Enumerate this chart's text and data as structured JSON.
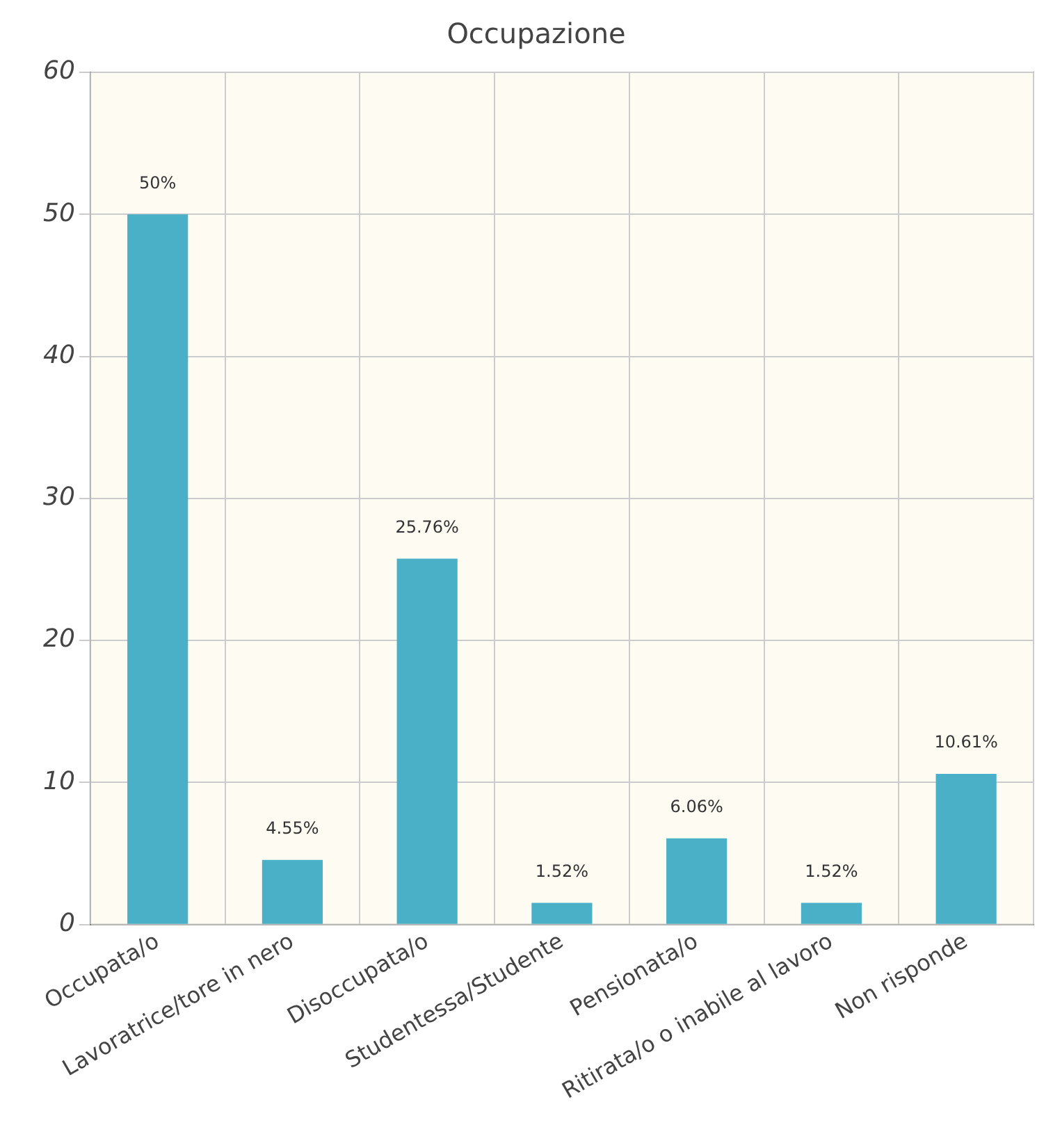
{
  "chart_data": {
    "type": "bar",
    "title": "Occupazione",
    "categories": [
      "Occupata/o",
      "Lavoratrice/tore in nero",
      "Disoccupata/o",
      "Studentessa/Studente",
      "Pensionata/o",
      "Ritirata/o o inabile al lavoro",
      "Non risponde"
    ],
    "values": [
      50,
      4.55,
      25.76,
      1.52,
      6.06,
      1.52,
      10.61
    ],
    "value_labels": [
      "50%",
      "4.55%",
      "25.76%",
      "1.52%",
      "6.06%",
      "1.52%",
      "10.61%"
    ],
    "color": "#4ab0c8",
    "ylim": [
      0,
      60
    ],
    "yticks": [
      0,
      10,
      20,
      30,
      40,
      50,
      60
    ],
    "grid": true
  }
}
